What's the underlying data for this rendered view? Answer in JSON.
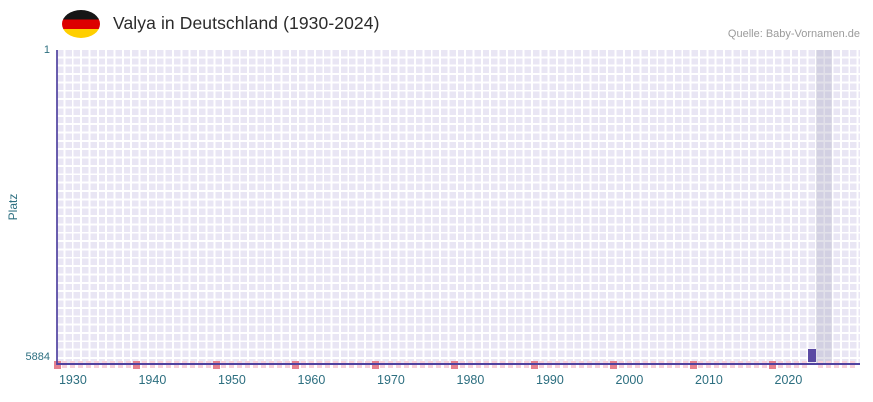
{
  "header": {
    "title": "Valya in Deutschland (1930-2024)",
    "source": "Quelle: Baby-Vornamen.de",
    "flag_icon": "germany-flag"
  },
  "chart_data": {
    "type": "scatter",
    "title": "Valya in Deutschland (1930-2024)",
    "xlabel": "",
    "ylabel": "Platz",
    "y_axis": {
      "top_label": "1",
      "bottom_label": "5884",
      "min": 1,
      "max": 5884,
      "inverted": true
    },
    "x_range": [
      1928,
      2029
    ],
    "x_ticks": [
      "1930",
      "1940",
      "1950",
      "1960",
      "1970",
      "1980",
      "1990",
      "2000",
      "2010",
      "2020"
    ],
    "points": [
      {
        "year": 2023,
        "rank": 5884
      }
    ],
    "no_rank_tick_years_dark": [
      1928,
      1938,
      1948,
      1958,
      1968,
      1978,
      1988,
      1998,
      2008,
      2018
    ],
    "no_rank_tick_years_light_range": [
      1928,
      2028
    ],
    "highlight_band_years": [
      2024,
      2025
    ],
    "grid": true,
    "legend": "none"
  },
  "colors": {
    "marker-purple": "#5b4aa3",
    "axis-purple": "#5042a0",
    "grid-cell": "#e9e6f4",
    "band-gray": "#aaa6c0",
    "mark-light-pink": "#f7d0da",
    "mark-dark-pink": "#e5818f",
    "tick-teal": "#2d6f80",
    "title-dark": "#2b2b2b",
    "source-gray": "#9b9b9b",
    "flag-black": "#161616",
    "flag-red": "#dd0000",
    "flag-gold": "#ffcf00"
  }
}
